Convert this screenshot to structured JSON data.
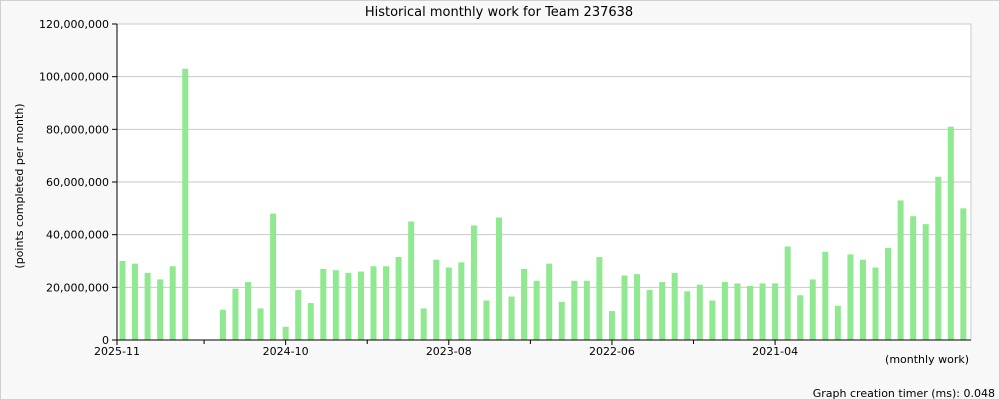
{
  "chart_data": {
    "type": "bar",
    "title": "Historical monthly work for Team 237638",
    "ylabel": "(points completed per month)",
    "xlabel": "(monthly work)",
    "ylim": [
      0,
      120000000
    ],
    "yticks": [
      0,
      20000000,
      40000000,
      60000000,
      80000000,
      100000000,
      120000000
    ],
    "ytick_labels": [
      "0",
      "20,000,000",
      "40,000,000",
      "60,000,000",
      "80,000,000",
      "100,000,000",
      "120,000,000"
    ],
    "x_order": "newest-to-oldest",
    "x_start": "2025-11",
    "xtick_labels": [
      "2025-11",
      "2024-10",
      "2023-08",
      "2022-06",
      "2021-04"
    ],
    "grid": true,
    "bar_color": "#90e890",
    "values": [
      30000000,
      29000000,
      25500000,
      23000000,
      28000000,
      103000000,
      0,
      0,
      11500000,
      19500000,
      22000000,
      12000000,
      48000000,
      5000000,
      19000000,
      14000000,
      27000000,
      26500000,
      25500000,
      26000000,
      28000000,
      28000000,
      31500000,
      45000000,
      12000000,
      30500000,
      27500000,
      29500000,
      43500000,
      15000000,
      46500000,
      16500000,
      27000000,
      22500000,
      29000000,
      14500000,
      22500000,
      22500000,
      31500000,
      11000000,
      24500000,
      25000000,
      19000000,
      22000000,
      25500000,
      18500000,
      21000000,
      15000000,
      22000000,
      21500000,
      20500000,
      21500000,
      21500000,
      35500000,
      17000000,
      23000000,
      33500000,
      13000000,
      32500000,
      30500000,
      27500000,
      35000000,
      53000000,
      47000000,
      44000000,
      62000000,
      81000000,
      50000000
    ]
  },
  "footer": {
    "timer_label": "Graph creation timer (ms): 0.048"
  }
}
